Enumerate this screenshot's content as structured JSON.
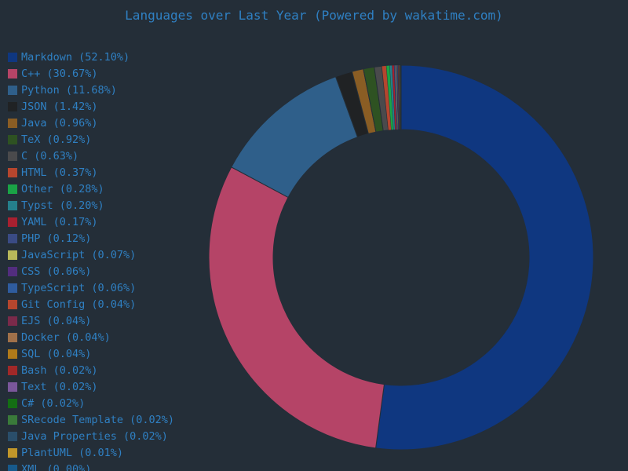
{
  "chart_data": {
    "type": "pie",
    "subtype": "donut",
    "title": "Languages over Last Year (Powered by wakatime.com)",
    "legend_position": "left",
    "categories": [
      "Markdown",
      "C++",
      "Python",
      "JSON",
      "Java",
      "TeX",
      "C",
      "HTML",
      "Other",
      "Typst",
      "YAML",
      "PHP",
      "JavaScript",
      "CSS",
      "TypeScript",
      "Git Config",
      "EJS",
      "Docker",
      "SQL",
      "Bash",
      "Text",
      "C#",
      "SRecode Template",
      "Java Properties",
      "PlantUML",
      "XML"
    ],
    "values": [
      52.1,
      30.67,
      11.68,
      1.42,
      0.96,
      0.92,
      0.63,
      0.37,
      0.28,
      0.2,
      0.17,
      0.12,
      0.07,
      0.06,
      0.06,
      0.04,
      0.04,
      0.04,
      0.04,
      0.02,
      0.02,
      0.02,
      0.02,
      0.02,
      0.01,
      0.0
    ],
    "labels": [
      "Markdown (52.10%)",
      "C++ (30.67%)",
      "Python (11.68%)",
      "JSON (1.42%)",
      "Java (0.96%)",
      "TeX (0.92%)",
      "C (0.63%)",
      "HTML (0.37%)",
      "Other (0.28%)",
      "Typst (0.20%)",
      "YAML (0.17%)",
      "PHP (0.12%)",
      "JavaScript (0.07%)",
      "CSS (0.06%)",
      "TypeScript (0.06%)",
      "Git Config (0.04%)",
      "EJS (0.04%)",
      "Docker (0.04%)",
      "SQL (0.04%)",
      "Bash (0.02%)",
      "Text (0.02%)",
      "C# (0.02%)",
      "SRecode Template (0.02%)",
      "Java Properties (0.02%)",
      "PlantUML (0.01%)",
      "XML (0.00%)"
    ],
    "colors": [
      "#0f3780",
      "#b54467",
      "#2f5f8a",
      "#202224",
      "#8a5d24",
      "#2e5222",
      "#4a4a4c",
      "#b5462e",
      "#1aa346",
      "#257f8c",
      "#a82030",
      "#3a4b84",
      "#b8b85a",
      "#522d7e",
      "#2f5c9e",
      "#b5462e",
      "#7a2a4a",
      "#a0714a",
      "#b07a1a",
      "#a02828",
      "#7a579a",
      "#146e14",
      "#3a7a3a",
      "#2a4e6a",
      "#c0962a",
      "#175a8c"
    ]
  }
}
